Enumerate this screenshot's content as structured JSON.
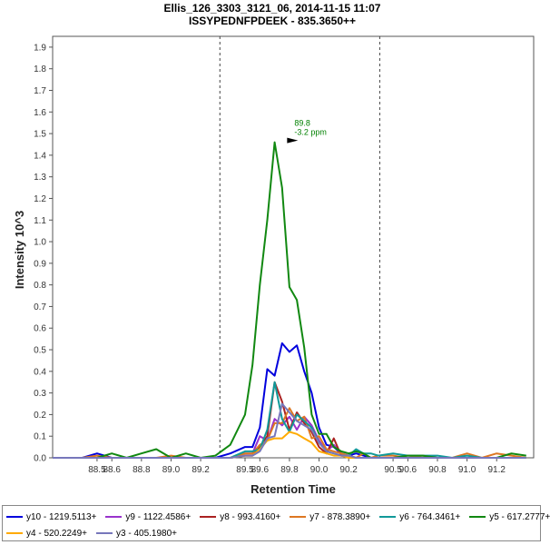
{
  "chart_data": {
    "type": "line",
    "title": "Ellis_126_3303_3121_06, 2014-11-15 11:07",
    "subtitle": "ISSYPEDNFPDEEK - 835.3650++",
    "xlabel": "Retention Time",
    "ylabel": "Intensity 10^3",
    "xlim": [
      88.2,
      91.45
    ],
    "ylim": [
      0,
      1.95
    ],
    "xticks": [
      88.5,
      88.6,
      88.8,
      89.0,
      89.2,
      89.5,
      89.6,
      89.8,
      90.0,
      90.2,
      90.5,
      90.6,
      90.8,
      91.0,
      91.2
    ],
    "yticks": [
      0.0,
      0.1,
      0.2,
      0.3,
      0.4,
      0.5,
      0.6,
      0.7,
      0.8,
      0.9,
      1.0,
      1.1,
      1.2,
      1.3,
      1.4,
      1.5,
      1.6,
      1.7,
      1.8,
      1.9
    ],
    "boundaries": [
      89.33,
      90.41
    ],
    "annotation": {
      "x": 89.87,
      "y": 1.46,
      "lines": [
        "89.8",
        "-3.2 ppm"
      ],
      "color": "#008000"
    },
    "x": [
      88.2,
      88.3,
      88.4,
      88.5,
      88.6,
      88.7,
      88.8,
      88.9,
      89.0,
      89.1,
      89.2,
      89.3,
      89.4,
      89.5,
      89.55,
      89.6,
      89.65,
      89.7,
      89.75,
      89.8,
      89.85,
      89.9,
      89.95,
      90.0,
      90.05,
      90.1,
      90.15,
      90.2,
      90.25,
      90.3,
      90.35,
      90.4,
      90.5,
      90.6,
      90.7,
      90.8,
      90.9,
      91.0,
      91.1,
      91.2,
      91.3,
      91.4
    ],
    "series": [
      {
        "name": "y10 - 1219.5113+",
        "color": "#0000dd",
        "values": [
          0,
          0,
          0,
          0.02,
          0,
          0,
          0,
          0,
          0,
          0,
          0,
          0,
          0.02,
          0.05,
          0.05,
          0.14,
          0.41,
          0.38,
          0.53,
          0.49,
          0.52,
          0.4,
          0.3,
          0.14,
          0.06,
          0.05,
          0.02,
          0.01,
          0.02,
          0.01,
          0,
          0,
          0,
          0,
          0,
          0,
          0,
          0,
          0,
          0,
          0,
          0
        ]
      },
      {
        "name": "y9 - 1122.4586+",
        "color": "#9933cc",
        "values": [
          0,
          0,
          0,
          0,
          0,
          0,
          0,
          0,
          0,
          0,
          0,
          0,
          0,
          0.02,
          0.02,
          0.1,
          0.08,
          0.18,
          0.15,
          0.19,
          0.13,
          0.19,
          0.15,
          0.08,
          0.03,
          0.06,
          0.02,
          0.01,
          0,
          0,
          0,
          0,
          0,
          0,
          0,
          0,
          0,
          0,
          0,
          0,
          0,
          0
        ]
      },
      {
        "name": "y8 - 993.4160+",
        "color": "#aa2222",
        "values": [
          0,
          0,
          0,
          0,
          0,
          0,
          0,
          0,
          0,
          0,
          0,
          0,
          0,
          0.01,
          0.01,
          0.05,
          0.1,
          0.35,
          0.26,
          0.13,
          0.21,
          0.16,
          0.12,
          0.05,
          0.02,
          0.09,
          0.01,
          0.01,
          0,
          0,
          0,
          0,
          0,
          0,
          0,
          0,
          0,
          0,
          0,
          0,
          0,
          0
        ]
      },
      {
        "name": "y7 - 878.3890+",
        "color": "#dd7722",
        "values": [
          0,
          0,
          0,
          0.01,
          0,
          0,
          0,
          0,
          0.01,
          0,
          0,
          0,
          0,
          0.02,
          0.02,
          0.06,
          0.08,
          0.16,
          0.16,
          0.23,
          0.17,
          0.19,
          0.09,
          0.1,
          0.04,
          0.03,
          0.02,
          0.01,
          0,
          0.02,
          0,
          0.01,
          0.01,
          0,
          0.01,
          0,
          0,
          0.02,
          0,
          0.02,
          0.01,
          0
        ]
      },
      {
        "name": "y6 - 764.3461+",
        "color": "#119999",
        "values": [
          0,
          0,
          0,
          0,
          0,
          0,
          0,
          0,
          0,
          0,
          0,
          0,
          0,
          0.03,
          0.03,
          0.04,
          0.13,
          0.35,
          0.18,
          0.12,
          0.2,
          0.17,
          0.14,
          0.07,
          0.03,
          0.02,
          0.01,
          0.01,
          0.04,
          0.02,
          0.02,
          0.01,
          0.02,
          0.01,
          0.01,
          0.01,
          0,
          0.01,
          0,
          0,
          0,
          0
        ]
      },
      {
        "name": "y5 - 617.2777+",
        "color": "#118811",
        "values": [
          0,
          0,
          0,
          0,
          0.02,
          0,
          0.02,
          0.04,
          0,
          0.02,
          0,
          0.01,
          0.06,
          0.2,
          0.43,
          0.8,
          1.1,
          1.46,
          1.25,
          0.79,
          0.73,
          0.51,
          0.2,
          0.11,
          0.11,
          0.05,
          0.03,
          0.02,
          0.03,
          0.02,
          0,
          0,
          0,
          0.01,
          0.01,
          0,
          0,
          0,
          0,
          0,
          0.02,
          0.01
        ]
      },
      {
        "name": "y4 - 520.2249+",
        "color": "#ffaa00",
        "values": [
          0,
          0,
          0,
          0,
          0,
          0,
          0,
          0,
          0,
          0,
          0,
          0,
          0,
          0.01,
          0.01,
          0.04,
          0.08,
          0.09,
          0.09,
          0.12,
          0.11,
          0.09,
          0.07,
          0.03,
          0.02,
          0.01,
          0.01,
          0,
          0,
          0,
          0,
          0,
          0,
          0,
          0,
          0,
          0,
          0,
          0,
          0,
          0,
          0
        ]
      },
      {
        "name": "y3 - 405.1980+",
        "color": "#7777bb",
        "values": [
          0,
          0,
          0,
          0,
          0,
          0,
          0,
          0,
          0,
          0,
          0,
          0,
          0,
          0.01,
          0.01,
          0.03,
          0.09,
          0.1,
          0.25,
          0.21,
          0.17,
          0.15,
          0.13,
          0.07,
          0.03,
          0.02,
          0.01,
          0.01,
          0,
          0,
          0,
          0,
          0,
          0,
          0,
          0,
          0,
          0,
          0,
          0,
          0,
          0
        ]
      }
    ]
  }
}
